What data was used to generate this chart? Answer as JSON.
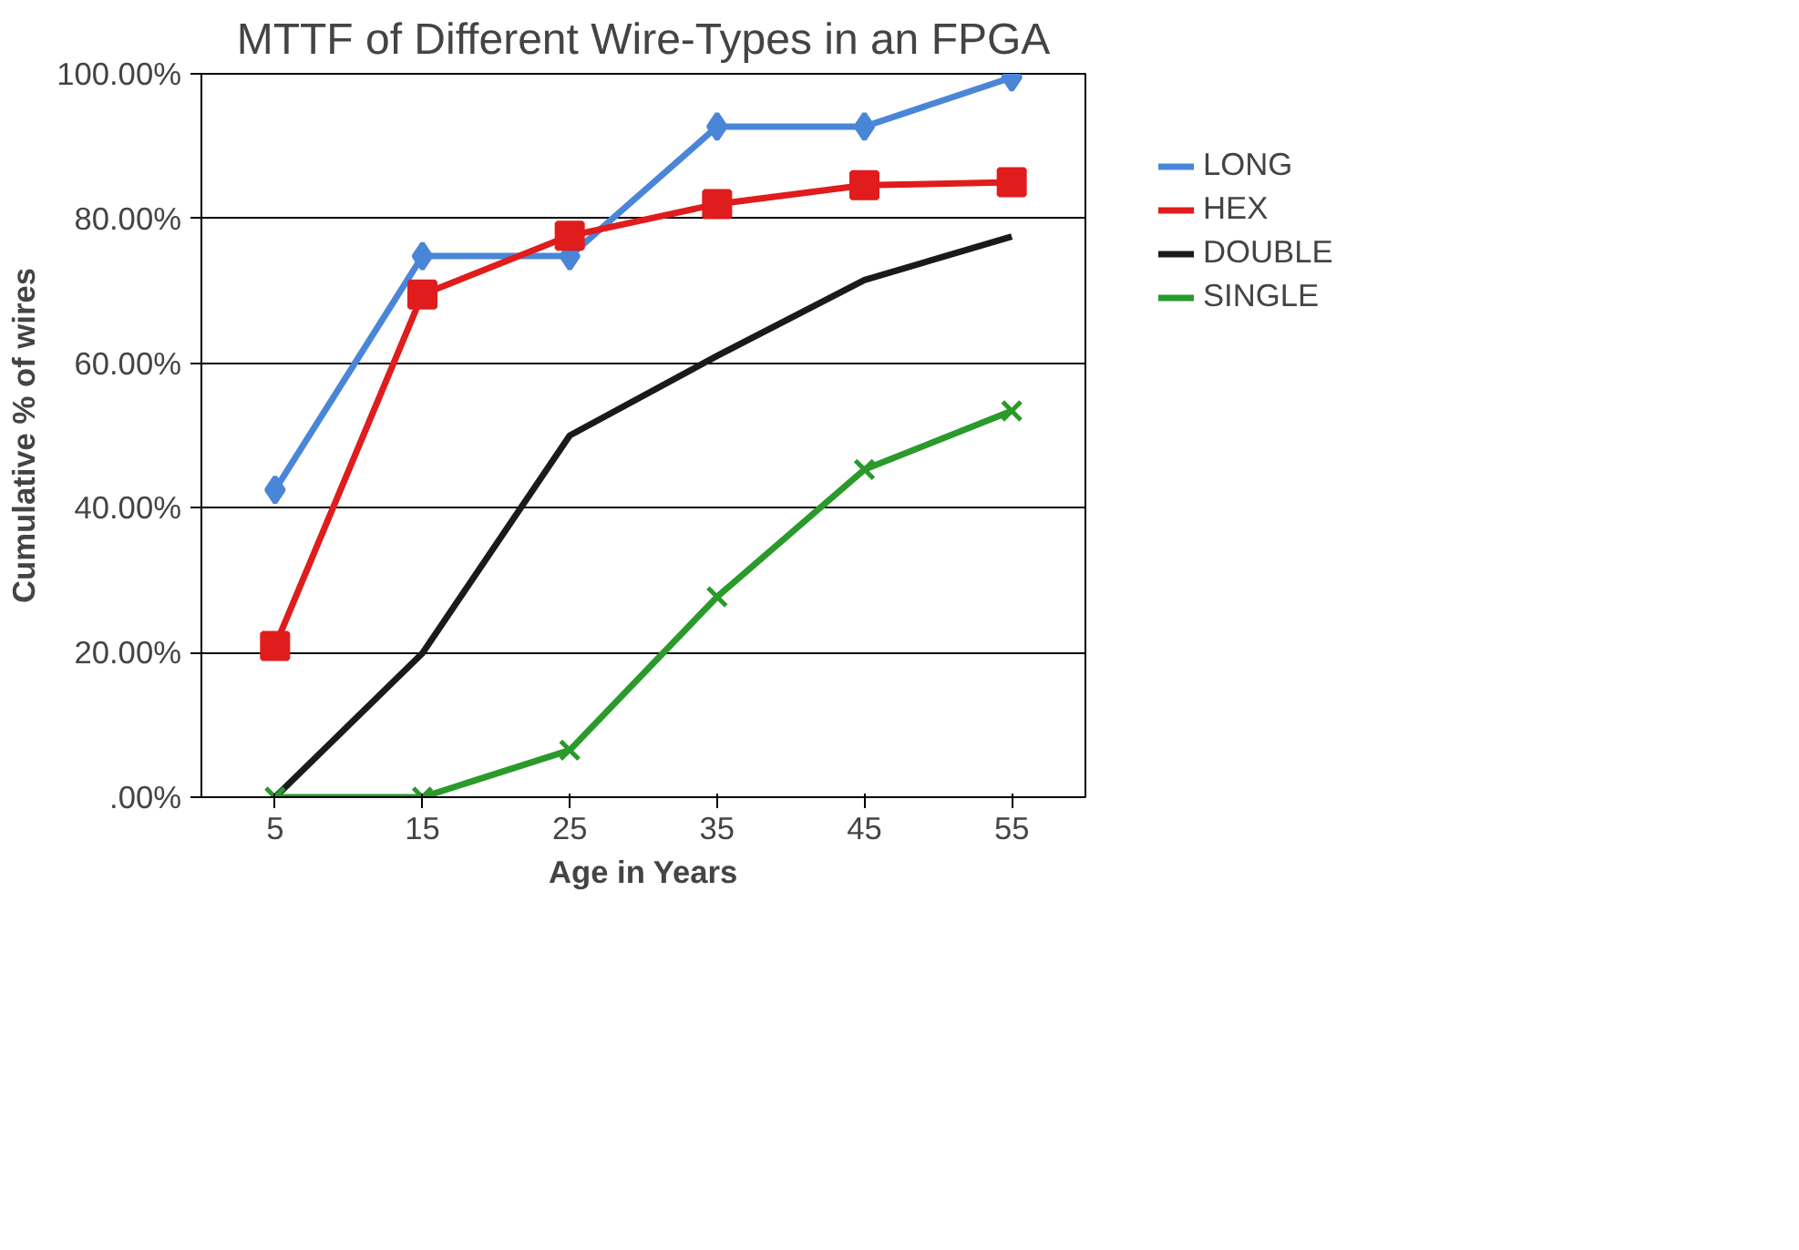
{
  "chart_data": {
    "type": "line",
    "title": "MTTF of Different Wire-Types in an FPGA",
    "xlabel": "Age in Years",
    "ylabel": "Cumulative % of wires",
    "categories": [
      "5",
      "15",
      "25",
      "35",
      "45",
      "55"
    ],
    "series": [
      {
        "name": "LONG",
        "color": "#4a86d8",
        "marker": "diamond",
        "values": [
          42.5,
          74.8,
          74.8,
          92.7,
          92.7,
          99.5
        ]
      },
      {
        "name": "HEX",
        "color": "#e01c1c",
        "marker": "square",
        "values": [
          20.9,
          69.5,
          77.6,
          82,
          84.6,
          85
        ]
      },
      {
        "name": "DOUBLE",
        "color": "#1a1a1a",
        "marker": "none",
        "values": [
          0,
          19.9,
          50,
          61,
          71.5,
          77.5
        ]
      },
      {
        "name": "SINGLE",
        "color": "#2a9a2a",
        "marker": "cross",
        "values": [
          0,
          0,
          6.5,
          27.7,
          45.3,
          53.4
        ]
      }
    ],
    "ylim": [
      0,
      100
    ],
    "yticks": [
      {
        "value": 0,
        "label": ".00%"
      },
      {
        "value": 20,
        "label": "20.00%"
      },
      {
        "value": 40,
        "label": "40.00%"
      },
      {
        "value": 60,
        "label": "60.00%"
      },
      {
        "value": 80,
        "label": "80.00%"
      },
      {
        "value": 100,
        "label": "100.00%"
      }
    ],
    "grid": "y",
    "legend": "right"
  }
}
